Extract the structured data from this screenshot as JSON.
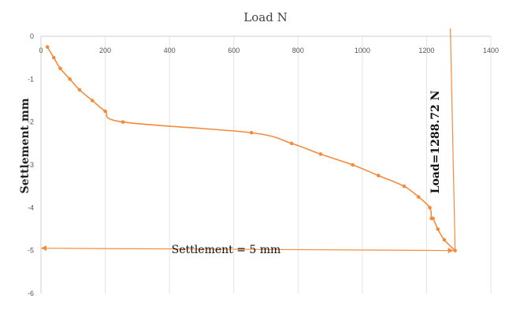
{
  "chart_data": {
    "type": "scatter",
    "title": "Load N",
    "xlabel": "",
    "ylabel": "Settlement mm",
    "xlim": [
      0,
      1400
    ],
    "ylim": [
      -6,
      0
    ],
    "xticks": [
      0,
      200,
      400,
      600,
      800,
      1000,
      1200,
      1400
    ],
    "yticks": [
      0,
      -1,
      -2,
      -3,
      -4,
      -5,
      -6
    ],
    "x_axis_position": "top",
    "grid": "vertical",
    "legend": "none",
    "color": "#f58a3a",
    "series": [
      {
        "x": [
          20,
          40,
          60,
          90,
          120,
          160,
          200,
          255,
          655,
          780,
          870,
          970,
          1050,
          1130,
          1175,
          1210,
          1215,
          1220,
          1235,
          1255,
          1288.72
        ],
        "y": [
          -0.25,
          -0.5,
          -0.75,
          -1.0,
          -1.25,
          -1.5,
          -1.75,
          -2.0,
          -2.25,
          -2.5,
          -2.75,
          -3.0,
          -3.25,
          -3.5,
          -3.75,
          -4.0,
          -4.25,
          -4.25,
          -4.5,
          -4.75,
          -5.0
        ]
      }
    ],
    "annotations": {
      "settlement": "Settlement = 5 mm",
      "load": "Load=1288.72 N"
    },
    "reference_lines": {
      "settlement_level": -5,
      "load_value": 1288.72
    }
  }
}
